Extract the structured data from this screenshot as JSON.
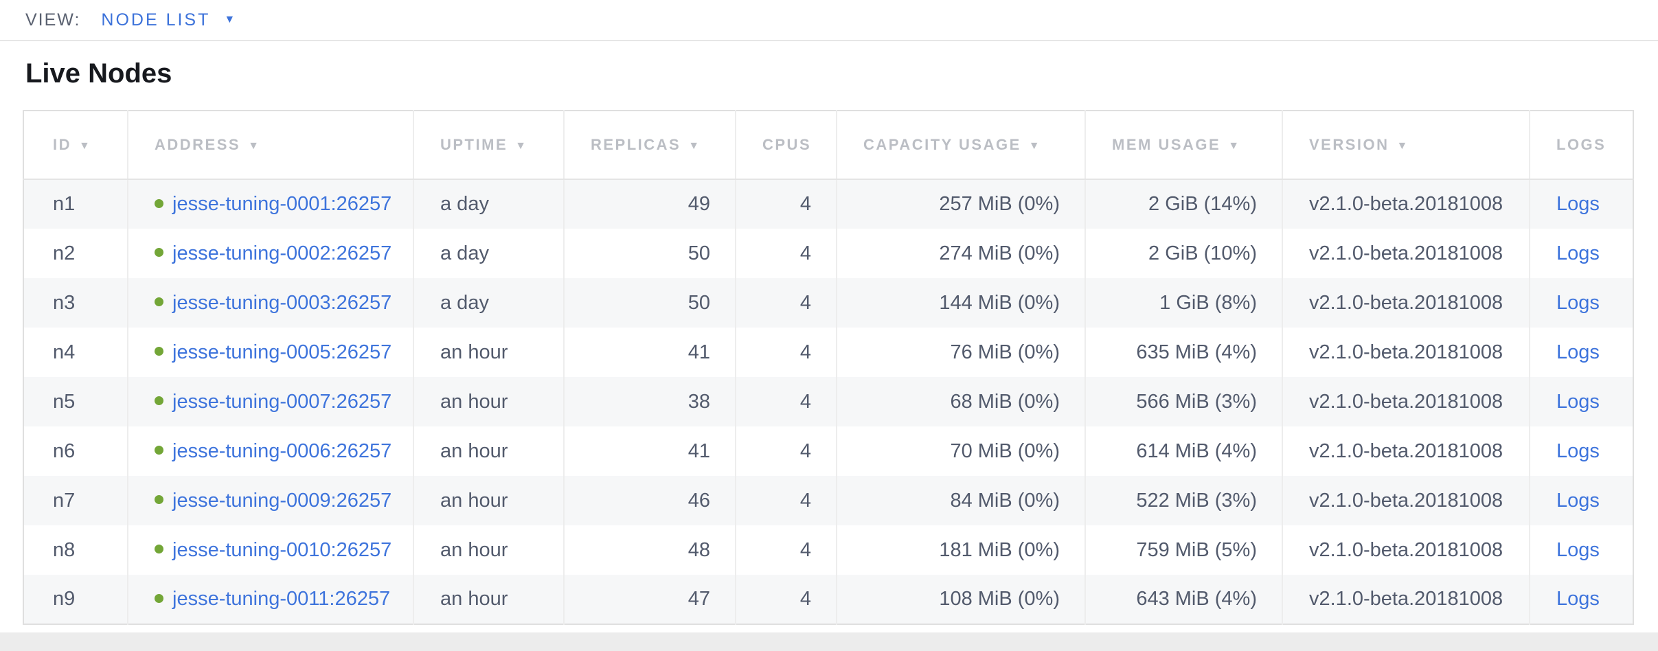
{
  "view_bar": {
    "label": "VIEW:",
    "selected_view": "NODE LIST"
  },
  "page_title": "Live Nodes",
  "icons": {
    "sort_desc_icon": "▼",
    "dropdown_icon": "▼",
    "node_status_icon": "live-dot"
  },
  "colors": {
    "link_blue": "#3e74dc",
    "accent_blue": "#3c72da",
    "live_green": "#73a637",
    "header_gray": "#bbbec4",
    "cell_text": "#525a6c",
    "row_stripe": "#f6f7f8"
  },
  "table": {
    "columns": [
      {
        "key": "id",
        "label": "ID",
        "sortable": true
      },
      {
        "key": "address",
        "label": "ADDRESS",
        "sortable": true
      },
      {
        "key": "uptime",
        "label": "UPTIME",
        "sortable": true
      },
      {
        "key": "replicas",
        "label": "REPLICAS",
        "sortable": true
      },
      {
        "key": "cpus",
        "label": "CPUS",
        "sortable": false
      },
      {
        "key": "capacity_usage",
        "label": "CAPACITY USAGE",
        "sortable": true
      },
      {
        "key": "mem_usage",
        "label": "MEM USAGE",
        "sortable": true
      },
      {
        "key": "version",
        "label": "VERSION",
        "sortable": true
      },
      {
        "key": "logs",
        "label": "LOGS",
        "sortable": false
      }
    ],
    "rows": [
      {
        "id": "n1",
        "status": "live",
        "address": "jesse-tuning-0001:26257",
        "uptime": "a day",
        "replicas": 49,
        "cpus": 4,
        "capacity_usage": "257 MiB (0%)",
        "mem_usage": "2 GiB (14%)",
        "version": "v2.1.0-beta.20181008",
        "logs": "Logs"
      },
      {
        "id": "n2",
        "status": "live",
        "address": "jesse-tuning-0002:26257",
        "uptime": "a day",
        "replicas": 50,
        "cpus": 4,
        "capacity_usage": "274 MiB (0%)",
        "mem_usage": "2 GiB (10%)",
        "version": "v2.1.0-beta.20181008",
        "logs": "Logs"
      },
      {
        "id": "n3",
        "status": "live",
        "address": "jesse-tuning-0003:26257",
        "uptime": "a day",
        "replicas": 50,
        "cpus": 4,
        "capacity_usage": "144 MiB (0%)",
        "mem_usage": "1 GiB (8%)",
        "version": "v2.1.0-beta.20181008",
        "logs": "Logs"
      },
      {
        "id": "n4",
        "status": "live",
        "address": "jesse-tuning-0005:26257",
        "uptime": "an hour",
        "replicas": 41,
        "cpus": 4,
        "capacity_usage": "76 MiB (0%)",
        "mem_usage": "635 MiB (4%)",
        "version": "v2.1.0-beta.20181008",
        "logs": "Logs"
      },
      {
        "id": "n5",
        "status": "live",
        "address": "jesse-tuning-0007:26257",
        "uptime": "an hour",
        "replicas": 38,
        "cpus": 4,
        "capacity_usage": "68 MiB (0%)",
        "mem_usage": "566 MiB (3%)",
        "version": "v2.1.0-beta.20181008",
        "logs": "Logs"
      },
      {
        "id": "n6",
        "status": "live",
        "address": "jesse-tuning-0006:26257",
        "uptime": "an hour",
        "replicas": 41,
        "cpus": 4,
        "capacity_usage": "70 MiB (0%)",
        "mem_usage": "614 MiB (4%)",
        "version": "v2.1.0-beta.20181008",
        "logs": "Logs"
      },
      {
        "id": "n7",
        "status": "live",
        "address": "jesse-tuning-0009:26257",
        "uptime": "an hour",
        "replicas": 46,
        "cpus": 4,
        "capacity_usage": "84 MiB (0%)",
        "mem_usage": "522 MiB (3%)",
        "version": "v2.1.0-beta.20181008",
        "logs": "Logs"
      },
      {
        "id": "n8",
        "status": "live",
        "address": "jesse-tuning-0010:26257",
        "uptime": "an hour",
        "replicas": 48,
        "cpus": 4,
        "capacity_usage": "181 MiB (0%)",
        "mem_usage": "759 MiB (5%)",
        "version": "v2.1.0-beta.20181008",
        "logs": "Logs"
      },
      {
        "id": "n9",
        "status": "live",
        "address": "jesse-tuning-0011:26257",
        "uptime": "an hour",
        "replicas": 47,
        "cpus": 4,
        "capacity_usage": "108 MiB (0%)",
        "mem_usage": "643 MiB (4%)",
        "version": "v2.1.0-beta.20181008",
        "logs": "Logs"
      }
    ]
  }
}
